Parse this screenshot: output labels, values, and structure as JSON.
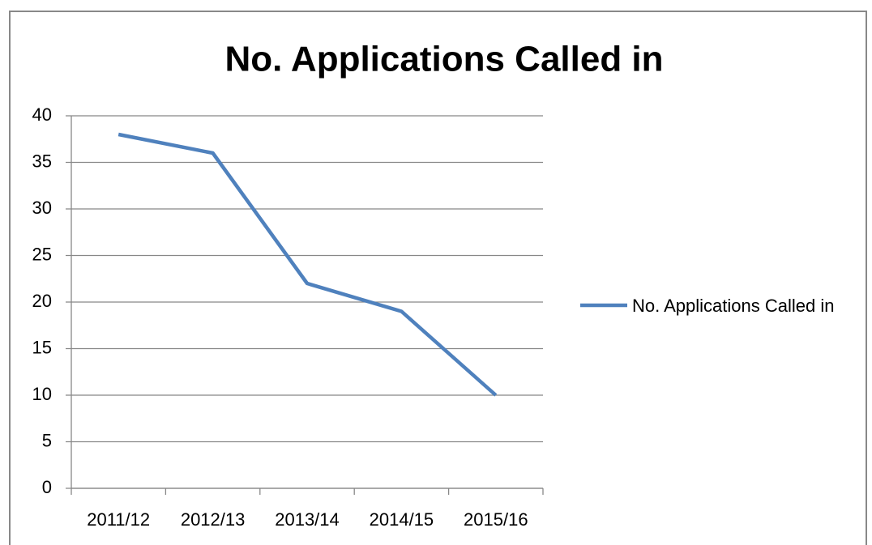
{
  "chart_data": {
    "type": "line",
    "title": "No. Applications Called in",
    "categories": [
      "2011/12",
      "2012/13",
      "2013/14",
      "2014/15",
      "2015/16"
    ],
    "series": [
      {
        "name": "No. Applications Called in",
        "color": "#4f81bd",
        "values": [
          38,
          36,
          22,
          19,
          10
        ]
      }
    ],
    "ylim": [
      0,
      40
    ],
    "yticks": [
      0,
      5,
      10,
      15,
      20,
      25,
      30,
      35,
      40
    ],
    "grid": true,
    "legend": "right"
  }
}
